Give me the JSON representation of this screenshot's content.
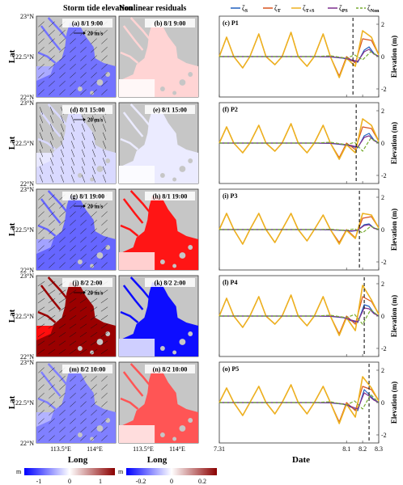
{
  "figure": {
    "col_titles": {
      "storm": "Storm tide elevation",
      "residual": "Nonlinear residuals"
    },
    "lat_label": "Lat",
    "long_label": "Long",
    "date_label": "Date",
    "elev_label": "Elevation (m)",
    "lat_ticks": [
      "23°N",
      "22.5°N",
      "22°N"
    ],
    "lon_ticks": [
      "113.5°E",
      "114°E"
    ],
    "scale_arrow_label": "20 m/s",
    "legend": [
      {
        "sym": "ζ",
        "sub": "S",
        "color": "#1f5fbf",
        "style": "solid"
      },
      {
        "sym": "ζ",
        "sub": "T",
        "color": "#d9531e",
        "style": "solid"
      },
      {
        "sym": "ζ",
        "sub": "T+S",
        "color": "#edb120",
        "style": "solid"
      },
      {
        "sym": "ζ",
        "sub": "PS",
        "color": "#7e2f8e",
        "style": "solid"
      },
      {
        "sym": "ζ",
        "sub": "Non",
        "color": "#77ac30",
        "style": "dashed"
      }
    ],
    "colorbars": [
      {
        "unit": "m",
        "ticks": [
          "-1",
          "0",
          "1"
        ]
      },
      {
        "unit": "m",
        "ticks": [
          "-0.2",
          "0",
          "0.2"
        ]
      }
    ]
  },
  "rows": [
    {
      "storm": "(a) 8/1 9:00",
      "resid": "(b) 8/1 9:00",
      "ts": "(c) P1",
      "storm_level": -0.55,
      "resid_level": 0.1,
      "show_arrow_label": true
    },
    {
      "storm": "(d) 8/1 15:00",
      "resid": "(e) 8/1 15:00",
      "ts": "(f) P2",
      "storm_level": -0.15,
      "resid_level": -0.08,
      "show_arrow_label": true
    },
    {
      "storm": "(g) 8/1 19:00",
      "resid": "(h) 8/1 19:00",
      "ts": "(i) P3",
      "storm_level": -0.6,
      "resid_level": 0.55,
      "show_arrow_label": true
    },
    {
      "storm": "(j) 8/2 2:00",
      "resid": "(k) 8/2 2:00",
      "ts": "(l) P4",
      "storm_level": 0.95,
      "resid_level": -0.95,
      "show_arrow_label": true
    },
    {
      "storm": "(m) 8/2 10:00",
      "resid": "(n) 8/2 10:00",
      "ts": "(o) P5",
      "storm_level": -0.5,
      "resid_level": 0.4,
      "show_arrow_label": false
    }
  ],
  "chart_data": {
    "type": "line",
    "xlabel": "Date",
    "ylabel": "Elevation (m)",
    "x_ticks": [
      "7.31",
      "8.1",
      "8.2",
      "8.3"
    ],
    "xlim": [
      7.31,
      8.3
    ],
    "ylim": [
      -2.5,
      2.5
    ],
    "y_ticks": [
      -2,
      0,
      2
    ],
    "panels": [
      {
        "name": "(c) P1",
        "marker_x": 8.14,
        "series": [
          {
            "name": "ζS",
            "x": [
              7.31,
              7.7,
              7.9,
              8.0,
              8.08,
              8.13,
              8.17,
              8.21,
              8.24,
              8.27,
              8.3
            ],
            "y": [
              0,
              0,
              0,
              -0.02,
              -0.1,
              -0.25,
              -0.35,
              0.4,
              0.6,
              0.2,
              0
            ]
          },
          {
            "name": "ζT",
            "x": [
              7.31,
              7.355,
              7.4,
              7.455,
              7.5,
              7.555,
              7.6,
              7.655,
              7.7,
              7.755,
              7.8,
              7.855,
              7.9,
              7.955,
              8.0,
              8.055,
              8.1,
              8.155,
              8.2,
              8.255,
              8.3
            ],
            "y": [
              0,
              1.2,
              0,
              -0.7,
              0,
              1.4,
              0,
              -0.5,
              0,
              1.5,
              0,
              -0.6,
              0,
              1.4,
              0,
              -1.2,
              0,
              -0.4,
              1.1,
              1.0,
              0.1
            ]
          },
          {
            "name": "ζT+S",
            "x": [
              7.31,
              7.355,
              7.4,
              7.455,
              7.5,
              7.555,
              7.6,
              7.655,
              7.7,
              7.755,
              7.8,
              7.855,
              7.9,
              7.955,
              8.0,
              8.055,
              8.1,
              8.155,
              8.2,
              8.255,
              8.3
            ],
            "y": [
              0,
              1.2,
              0,
              -0.7,
              0,
              1.4,
              0,
              -0.5,
              0,
              1.5,
              0,
              -0.6,
              0,
              1.4,
              0,
              -1.3,
              -0.1,
              -0.6,
              1.6,
              1.2,
              0.1
            ]
          },
          {
            "name": "ζPS",
            "x": [
              7.31,
              7.7,
              7.9,
              8.0,
              8.08,
              8.13,
              8.17,
              8.21,
              8.24,
              8.27,
              8.3
            ],
            "y": [
              0,
              0,
              0,
              -0.01,
              -0.08,
              -0.2,
              -0.3,
              0.3,
              0.45,
              0.15,
              0
            ]
          },
          {
            "name": "ζNon",
            "x": [
              7.31,
              7.7,
              7.9,
              8.0,
              8.1,
              8.15,
              8.2,
              8.25,
              8.3
            ],
            "y": [
              0,
              0,
              0,
              0.05,
              -0.1,
              0.1,
              -0.2,
              0.3,
              0
            ]
          }
        ]
      },
      {
        "name": "(f) P2",
        "marker_x": 8.16,
        "series": [
          {
            "name": "ζS",
            "x": [
              7.31,
              7.7,
              7.9,
              8.0,
              8.08,
              8.13,
              8.17,
              8.21,
              8.24,
              8.27,
              8.3
            ],
            "y": [
              0,
              0,
              0,
              -0.02,
              -0.1,
              -0.2,
              -0.3,
              0.45,
              0.6,
              0.2,
              0
            ]
          },
          {
            "name": "ζT",
            "x": [
              7.31,
              7.355,
              7.4,
              7.455,
              7.5,
              7.555,
              7.6,
              7.655,
              7.7,
              7.755,
              7.8,
              7.855,
              7.9,
              7.955,
              8.0,
              8.055,
              8.1,
              8.155,
              8.2,
              8.255,
              8.3
            ],
            "y": [
              0,
              1.0,
              0,
              -0.6,
              0,
              1.1,
              0,
              -0.5,
              0,
              1.2,
              0,
              -0.6,
              0,
              1.1,
              0,
              -0.9,
              0,
              -0.4,
              1.0,
              0.9,
              0.1
            ]
          },
          {
            "name": "ζT+S",
            "x": [
              7.31,
              7.355,
              7.4,
              7.455,
              7.5,
              7.555,
              7.6,
              7.655,
              7.7,
              7.755,
              7.8,
              7.855,
              7.9,
              7.955,
              8.0,
              8.055,
              8.1,
              8.155,
              8.2,
              8.255,
              8.3
            ],
            "y": [
              0,
              1.0,
              0,
              -0.6,
              0,
              1.1,
              0,
              -0.5,
              0,
              1.2,
              0,
              -0.6,
              0,
              1.1,
              0,
              -1.0,
              -0.1,
              -0.6,
              1.5,
              1.1,
              0.1
            ]
          },
          {
            "name": "ζPS",
            "x": [
              7.31,
              7.7,
              7.9,
              8.0,
              8.08,
              8.13,
              8.17,
              8.21,
              8.24,
              8.27,
              8.3
            ],
            "y": [
              0,
              0,
              0,
              -0.01,
              -0.08,
              -0.15,
              -0.25,
              0.35,
              0.45,
              0.15,
              0
            ]
          },
          {
            "name": "ζNon",
            "x": [
              7.31,
              7.7,
              7.9,
              8.0,
              8.1,
              8.15,
              8.2,
              8.25,
              8.3
            ],
            "y": [
              0,
              0,
              0,
              0.05,
              -0.1,
              0.05,
              -0.5,
              0.3,
              0
            ]
          }
        ]
      },
      {
        "name": "(i) P3",
        "marker_x": 8.18,
        "series": [
          {
            "name": "ζS",
            "x": [
              7.31,
              7.7,
              7.9,
              8.0,
              8.08,
              8.13,
              8.17,
              8.21,
              8.24,
              8.27,
              8.3
            ],
            "y": [
              0,
              0,
              0,
              -0.02,
              -0.05,
              -0.1,
              -0.05,
              0.3,
              0.35,
              0.1,
              0
            ]
          },
          {
            "name": "ζT",
            "x": [
              7.31,
              7.355,
              7.4,
              7.455,
              7.5,
              7.555,
              7.6,
              7.655,
              7.7,
              7.755,
              7.8,
              7.855,
              7.9,
              7.955,
              8.0,
              8.055,
              8.1,
              8.155,
              8.2,
              8.255,
              8.3
            ],
            "y": [
              0,
              1.0,
              0,
              -0.9,
              0,
              1.0,
              0,
              -0.8,
              0,
              1.0,
              0,
              -0.7,
              0,
              0.9,
              0,
              -0.8,
              0,
              -0.5,
              0.7,
              0.8,
              0.1
            ]
          },
          {
            "name": "ζT+S",
            "x": [
              7.31,
              7.355,
              7.4,
              7.455,
              7.5,
              7.555,
              7.6,
              7.655,
              7.7,
              7.755,
              7.8,
              7.855,
              7.9,
              7.955,
              8.0,
              8.055,
              8.1,
              8.155,
              8.2,
              8.255,
              8.3
            ],
            "y": [
              0,
              1.0,
              0,
              -0.9,
              0,
              1.0,
              0,
              -0.8,
              0,
              1.0,
              0,
              -0.7,
              0,
              0.9,
              0,
              -0.9,
              -0.05,
              -0.55,
              1.0,
              0.9,
              0.1
            ]
          },
          {
            "name": "ζPS",
            "x": [
              7.31,
              7.7,
              7.9,
              8.0,
              8.08,
              8.13,
              8.17,
              8.21,
              8.24,
              8.27,
              8.3
            ],
            "y": [
              0,
              0,
              0,
              -0.01,
              -0.04,
              -0.08,
              -0.04,
              0.25,
              0.3,
              0.08,
              0
            ]
          },
          {
            "name": "ζNon",
            "x": [
              7.31,
              7.7,
              7.9,
              8.0,
              8.1,
              8.15,
              8.2,
              8.25,
              8.3
            ],
            "y": [
              0,
              0,
              0,
              0.02,
              -0.05,
              0.05,
              -0.2,
              0.2,
              0
            ]
          }
        ]
      },
      {
        "name": "(l) P4",
        "marker_x": 8.21,
        "series": [
          {
            "name": "ζS",
            "x": [
              7.31,
              7.7,
              7.9,
              8.0,
              8.08,
              8.13,
              8.17,
              8.21,
              8.24,
              8.27,
              8.3
            ],
            "y": [
              0,
              0,
              0,
              -0.02,
              -0.1,
              -0.3,
              -0.4,
              0.7,
              0.6,
              0.2,
              0
            ]
          },
          {
            "name": "ζT",
            "x": [
              7.31,
              7.355,
              7.4,
              7.455,
              7.5,
              7.555,
              7.6,
              7.655,
              7.7,
              7.755,
              7.8,
              7.855,
              7.9,
              7.955,
              8.0,
              8.055,
              8.1,
              8.155,
              8.2,
              8.255,
              8.3
            ],
            "y": [
              0,
              1.1,
              0,
              -0.7,
              0,
              1.2,
              0,
              -0.5,
              0,
              1.3,
              0,
              -0.6,
              0,
              1.2,
              0,
              -1.1,
              0,
              -0.5,
              1.2,
              0.9,
              0.1
            ]
          },
          {
            "name": "ζT+S",
            "x": [
              7.31,
              7.355,
              7.4,
              7.455,
              7.5,
              7.555,
              7.6,
              7.655,
              7.7,
              7.755,
              7.8,
              7.855,
              7.9,
              7.955,
              8.0,
              8.055,
              8.1,
              8.155,
              8.2,
              8.255,
              8.3
            ],
            "y": [
              0,
              1.1,
              0,
              -0.7,
              0,
              1.2,
              0,
              -0.5,
              0,
              1.3,
              0,
              -0.6,
              0,
              1.2,
              0,
              -1.2,
              -0.1,
              -0.9,
              1.9,
              1.0,
              0.1
            ]
          },
          {
            "name": "ζPS",
            "x": [
              7.31,
              7.7,
              7.9,
              8.0,
              8.08,
              8.13,
              8.17,
              8.21,
              8.24,
              8.27,
              8.3
            ],
            "y": [
              0,
              0,
              0,
              -0.01,
              -0.08,
              -0.25,
              -0.35,
              0.5,
              0.45,
              0.15,
              0
            ]
          },
          {
            "name": "ζNon",
            "x": [
              7.31,
              7.7,
              7.9,
              8.0,
              8.1,
              8.15,
              8.2,
              8.25,
              8.3
            ],
            "y": [
              0,
              0,
              0,
              0.05,
              -0.1,
              0.1,
              -0.5,
              0.4,
              0
            ]
          }
        ]
      },
      {
        "name": "(o) P5",
        "marker_x": 8.24,
        "series": [
          {
            "name": "ζS",
            "x": [
              7.31,
              7.7,
              7.9,
              8.0,
              8.08,
              8.13,
              8.17,
              8.21,
              8.24,
              8.27,
              8.3
            ],
            "y": [
              0,
              0,
              0,
              -0.02,
              -0.1,
              -0.3,
              -0.5,
              0.8,
              0.5,
              0.2,
              0
            ]
          },
          {
            "name": "ζT",
            "x": [
              7.31,
              7.355,
              7.4,
              7.455,
              7.5,
              7.555,
              7.6,
              7.655,
              7.7,
              7.755,
              7.8,
              7.855,
              7.9,
              7.955,
              8.0,
              8.055,
              8.1,
              8.155,
              8.2,
              8.255,
              8.3
            ],
            "y": [
              0,
              0.9,
              0,
              -0.8,
              0,
              1.0,
              0,
              -0.7,
              0,
              1.1,
              0,
              -0.7,
              0,
              1.0,
              0,
              -1.2,
              0,
              -0.5,
              1.0,
              0.8,
              0.1
            ]
          },
          {
            "name": "ζT+S",
            "x": [
              7.31,
              7.355,
              7.4,
              7.455,
              7.5,
              7.555,
              7.6,
              7.655,
              7.7,
              7.755,
              7.8,
              7.855,
              7.9,
              7.955,
              8.0,
              8.055,
              8.1,
              8.155,
              8.2,
              8.255,
              8.3
            ],
            "y": [
              0,
              0.9,
              0,
              -0.8,
              0,
              1.0,
              0,
              -0.7,
              0,
              1.1,
              0,
              -0.7,
              0,
              1.0,
              0,
              -1.3,
              -0.1,
              -0.9,
              1.6,
              0.9,
              0.1
            ]
          },
          {
            "name": "ζPS",
            "x": [
              7.31,
              7.7,
              7.9,
              8.0,
              8.08,
              8.13,
              8.17,
              8.21,
              8.24,
              8.27,
              8.3
            ],
            "y": [
              0,
              0,
              0,
              -0.01,
              -0.08,
              -0.25,
              -0.4,
              0.6,
              0.4,
              0.15,
              0
            ]
          },
          {
            "name": "ζNon",
            "x": [
              7.31,
              7.7,
              7.9,
              8.0,
              8.1,
              8.15,
              8.2,
              8.25,
              8.3
            ],
            "y": [
              0,
              0,
              0,
              0.05,
              -0.15,
              0.1,
              -0.4,
              0.5,
              0
            ]
          }
        ]
      }
    ]
  }
}
